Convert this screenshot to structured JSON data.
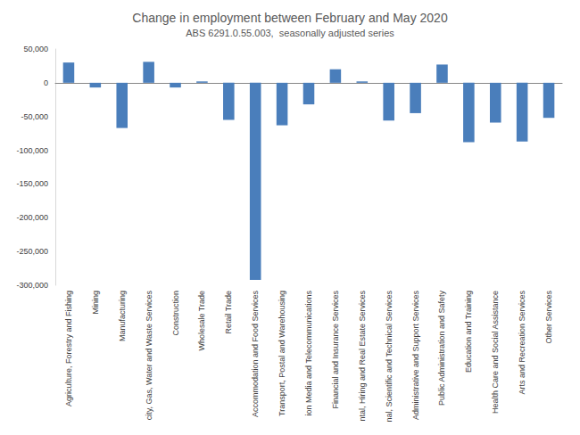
{
  "chart_data": {
    "type": "bar",
    "title": "Change in employment between February and May 2020",
    "subtitle": "ABS 6291.0.55.003,  seasonally adjusted series",
    "categories": [
      "Agriculture, Forestry and Fishing",
      "Mining",
      "Manufacturing",
      "city, Gas, Water and Waste Services",
      "Construction",
      "Wholesale Trade",
      "Retail Trade",
      "Accommodation and Food Services",
      "Transport, Postal and Warehousing",
      "ion Media and Telecommunications",
      "Financial and Insurance Services",
      "ntal, Hiring and Real Estate Services",
      "nal, Scientific and Technical Services",
      "Administrative and Support Services",
      "Public Administration and Safety",
      "Education and Training",
      "Health Care and Social Assistance",
      "Arts and Recreation Services",
      "Other Services"
    ],
    "values": [
      30000,
      -7000,
      -67000,
      31000,
      -7000,
      2000,
      -55000,
      -292000,
      -63000,
      -32000,
      20000,
      2000,
      -56000,
      -45000,
      27000,
      -88000,
      -59000,
      -87000,
      -52000
    ],
    "color": "#4a7ebb",
    "ylim": [
      -300000,
      50000
    ],
    "yticks": [
      {
        "value": -300000,
        "label": "-300,000"
      },
      {
        "value": -250000,
        "label": "-250,000"
      },
      {
        "value": -200000,
        "label": "-200,000"
      },
      {
        "value": -150000,
        "label": "-150,000"
      },
      {
        "value": -100000,
        "label": "-100,000"
      },
      {
        "value": -50000,
        "label": "-50,000"
      },
      0,
      {
        "value": 50000,
        "label": "50,000"
      }
    ],
    "grid": false
  }
}
